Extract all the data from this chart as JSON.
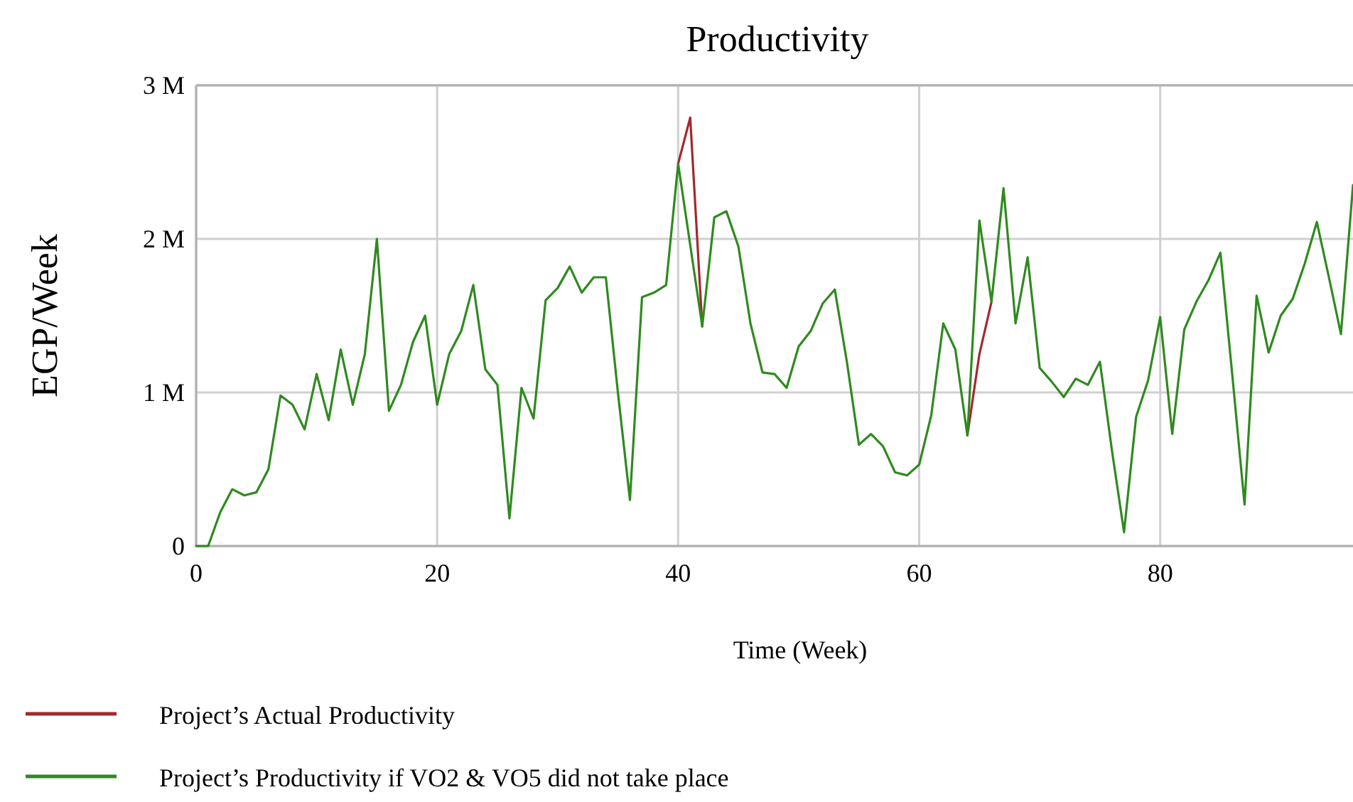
{
  "chart_data": {
    "type": "line",
    "title": "Productivity",
    "xlabel": "Time (Week)",
    "ylabel": "EGP/Week",
    "x": [
      0,
      1,
      2,
      3,
      4,
      5,
      6,
      7,
      8,
      9,
      10,
      11,
      12,
      13,
      14,
      15,
      16,
      17,
      18,
      19,
      20,
      21,
      22,
      23,
      24,
      25,
      26,
      27,
      28,
      29,
      30,
      31,
      32,
      33,
      34,
      35,
      36,
      37,
      38,
      39,
      40,
      41,
      42,
      43,
      44,
      45,
      46,
      47,
      48,
      49,
      50,
      51,
      52,
      53,
      54,
      55,
      56,
      57,
      58,
      59,
      60,
      61,
      62,
      63,
      64,
      65,
      66,
      67,
      68,
      69,
      70,
      71,
      72,
      73,
      74,
      75,
      76,
      77,
      78,
      79,
      80,
      81,
      82,
      83,
      84,
      85,
      86,
      87,
      88,
      89,
      90,
      91,
      92,
      93,
      94,
      95,
      96
    ],
    "series": [
      {
        "name": "Project’s Actual Productivity",
        "color": "#a3282f",
        "values": [
          null,
          null,
          null,
          null,
          null,
          null,
          null,
          null,
          null,
          null,
          null,
          null,
          null,
          null,
          null,
          null,
          null,
          null,
          null,
          null,
          null,
          null,
          null,
          null,
          null,
          null,
          null,
          null,
          null,
          null,
          null,
          null,
          null,
          null,
          null,
          null,
          null,
          null,
          null,
          null,
          2.49,
          2.79,
          1.43,
          null,
          null,
          null,
          null,
          null,
          null,
          null,
          null,
          null,
          null,
          null,
          null,
          null,
          null,
          null,
          null,
          null,
          null,
          null,
          null,
          null,
          0.72,
          1.25,
          1.59,
          null,
          null,
          null,
          null,
          null,
          null,
          null,
          null,
          null,
          null,
          null,
          null,
          null,
          null,
          null,
          null,
          null,
          null,
          null,
          null,
          null,
          null,
          null,
          null,
          null,
          null,
          null,
          null,
          null,
          null
        ]
      },
      {
        "name": "Project’s Productivity if VO2 & VO5 did not take place",
        "color": "#2f8a1f",
        "values": [
          0,
          0,
          0.22,
          0.37,
          0.33,
          0.35,
          0.5,
          0.98,
          0.92,
          0.76,
          1.12,
          0.82,
          1.28,
          0.92,
          1.25,
          2.0,
          0.88,
          1.05,
          1.33,
          1.5,
          0.92,
          1.25,
          1.4,
          1.7,
          1.15,
          1.05,
          0.18,
          1.03,
          0.83,
          1.6,
          1.68,
          1.82,
          1.65,
          1.75,
          1.75,
          1.0,
          0.3,
          1.62,
          1.65,
          1.7,
          2.49,
          1.96,
          1.43,
          2.14,
          2.18,
          1.95,
          1.45,
          1.13,
          1.12,
          1.03,
          1.3,
          1.4,
          1.58,
          1.67,
          1.2,
          0.66,
          0.73,
          0.65,
          0.48,
          0.46,
          0.53,
          0.85,
          1.45,
          1.28,
          0.72,
          2.12,
          1.59,
          2.33,
          1.45,
          1.88,
          1.16,
          1.07,
          0.97,
          1.09,
          1.05,
          1.2,
          0.62,
          0.09,
          0.84,
          1.08,
          1.49,
          0.73,
          1.41,
          1.59,
          1.73,
          1.91,
          1.1,
          0.27,
          1.63,
          1.26,
          1.5,
          1.61,
          1.84,
          2.11,
          1.75,
          1.38,
          2.35
        ]
      }
    ],
    "xlim": [
      0,
      96
    ],
    "xticks": [
      0,
      20,
      40,
      60,
      80
    ],
    "ylim": [
      0,
      3
    ],
    "yticks": [
      {
        "value": 0,
        "label": "0"
      },
      {
        "value": 1,
        "label": "1 M"
      },
      {
        "value": 2,
        "label": "2 M"
      },
      {
        "value": 3,
        "label": "3 M"
      }
    ],
    "grid": true,
    "legend": "bottom",
    "marker": "none",
    "line_style": "solid"
  }
}
